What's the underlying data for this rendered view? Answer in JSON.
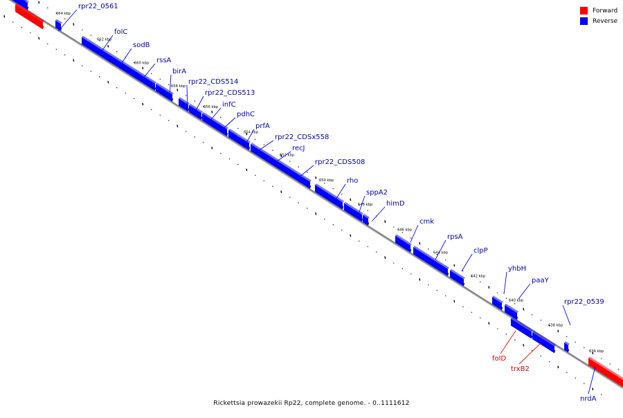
{
  "legend": {
    "items": [
      {
        "label": "Forward",
        "color": "#ff0000"
      },
      {
        "label": "Reverse",
        "color": "#0000ff"
      }
    ]
  },
  "caption": "Rickettsia prowazekii Rp22, complete genome. - 0..1111612",
  "colors": {
    "forward": "#ff0000",
    "reverse": "#0000ff",
    "forward_label": "#cc0000",
    "reverse_label": "#0000aa",
    "backbone": "#808080"
  },
  "scale_ticks": [
    "664 kbp",
    "662 kbp",
    "660 kbp",
    "658 kbp",
    "656 kbp",
    "654 kbp",
    "652 kbp",
    "650 kbp",
    "648 kbp",
    "646 kbp",
    "644 kbp",
    "642 kbp",
    "640 kbp",
    "638 kbp",
    "636 kbp"
  ],
  "genes": [
    {
      "name": "rpr22_0561",
      "strand": "reverse"
    },
    {
      "name": "folC",
      "strand": "reverse"
    },
    {
      "name": "sodB",
      "strand": "reverse"
    },
    {
      "name": "rssA",
      "strand": "reverse"
    },
    {
      "name": "birA",
      "strand": "reverse"
    },
    {
      "name": "rpr22_CDS514",
      "strand": "reverse"
    },
    {
      "name": "rpr22_CDS513",
      "strand": "reverse"
    },
    {
      "name": "infC",
      "strand": "reverse"
    },
    {
      "name": "pdhC",
      "strand": "reverse"
    },
    {
      "name": "prfA",
      "strand": "reverse"
    },
    {
      "name": "rpr22_CDSx558",
      "strand": "reverse"
    },
    {
      "name": "recJ",
      "strand": "reverse"
    },
    {
      "name": "rpr22_CDS508",
      "strand": "reverse"
    },
    {
      "name": "rho",
      "strand": "reverse"
    },
    {
      "name": "sppA2",
      "strand": "reverse"
    },
    {
      "name": "himD",
      "strand": "reverse"
    },
    {
      "name": "cmk",
      "strand": "reverse"
    },
    {
      "name": "rpsA",
      "strand": "reverse"
    },
    {
      "name": "clpP",
      "strand": "reverse"
    },
    {
      "name": "yhbH",
      "strand": "reverse"
    },
    {
      "name": "paaY",
      "strand": "reverse"
    },
    {
      "name": "rpr22_0539",
      "strand": "reverse"
    },
    {
      "name": "folD",
      "strand": "forward"
    },
    {
      "name": "trxB2",
      "strand": "forward"
    },
    {
      "name": "nrdA",
      "strand": "reverse"
    }
  ]
}
